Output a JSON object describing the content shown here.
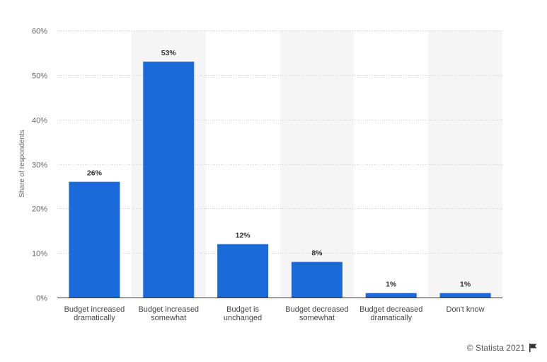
{
  "chart_data": {
    "type": "bar",
    "categories": [
      [
        "Budget increased",
        "dramatically"
      ],
      [
        "Budget increased",
        "somewhat"
      ],
      [
        "Budget is",
        "unchanged"
      ],
      [
        "Budget decreased",
        "somewhat"
      ],
      [
        "Budget decreased",
        "dramatically"
      ],
      [
        "Don't know"
      ]
    ],
    "values": [
      26,
      53,
      12,
      8,
      1,
      1
    ],
    "data_labels": [
      "26%",
      "53%",
      "12%",
      "8%",
      "1%",
      "1%"
    ],
    "ylabel": "Share of respondents",
    "ylim": [
      0,
      60
    ],
    "yticks": [
      0,
      10,
      20,
      30,
      40,
      50,
      60
    ],
    "ytick_labels": [
      "0%",
      "10%",
      "20%",
      "30%",
      "40%",
      "50%",
      "60%"
    ],
    "grid": true,
    "bar_color": "#1a6ad9",
    "band_color": "#f5f5f5"
  },
  "footer": {
    "credit": "© Statista 2021",
    "icon": "flag-icon"
  }
}
